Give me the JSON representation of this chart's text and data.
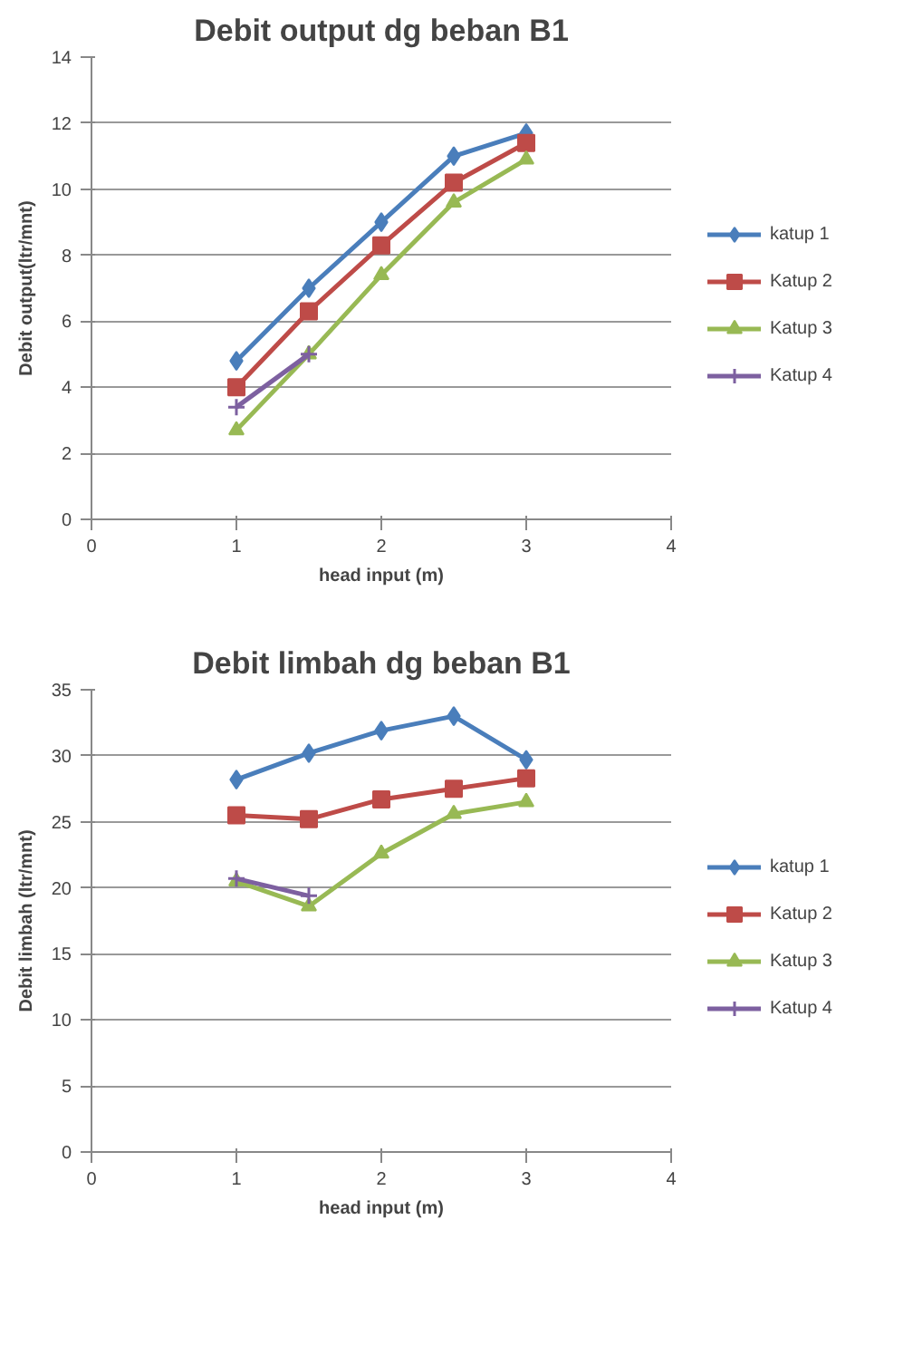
{
  "chart_data": [
    {
      "type": "line",
      "title": "Debit output dg beban B1",
      "xlabel": "head input (m)",
      "ylabel": "Debit output(ltr/mnt)",
      "x": [
        1,
        1.5,
        2,
        2.5,
        3
      ],
      "xlim": [
        0,
        4
      ],
      "xticks": [
        0,
        1,
        2,
        3,
        4
      ],
      "ylim": [
        0,
        14
      ],
      "yticks": [
        0,
        2,
        4,
        6,
        8,
        10,
        12,
        14
      ],
      "grid": "y",
      "legend": "right",
      "series": [
        {
          "name": "katup 1",
          "color": "#4a7ebb",
          "marker": "diamond",
          "values": [
            4.8,
            7.0,
            9.0,
            11.0,
            11.7
          ]
        },
        {
          "name": "Katup 2",
          "color": "#be4b48",
          "marker": "square",
          "values": [
            4.0,
            6.3,
            8.3,
            10.2,
            11.4
          ]
        },
        {
          "name": "Katup 3",
          "color": "#98b954",
          "marker": "triangle",
          "values": [
            2.7,
            5.0,
            7.4,
            9.6,
            10.9
          ]
        },
        {
          "name": "Katup 4",
          "color": "#7d60a0",
          "marker": "cross",
          "values": [
            3.4,
            5.0,
            null,
            null,
            null
          ]
        }
      ]
    },
    {
      "type": "line",
      "title": "Debit limbah dg beban B1",
      "xlabel": "head input (m)",
      "ylabel": "Debit limbah (ltr/mnt)",
      "x": [
        1,
        1.5,
        2,
        2.5,
        3
      ],
      "xlim": [
        0,
        4
      ],
      "xticks": [
        0,
        1,
        2,
        3,
        4
      ],
      "ylim": [
        0,
        35
      ],
      "yticks": [
        0,
        5,
        10,
        15,
        20,
        25,
        30,
        35
      ],
      "grid": "y",
      "legend": "right",
      "series": [
        {
          "name": "katup 1",
          "color": "#4a7ebb",
          "marker": "diamond",
          "values": [
            28.2,
            30.2,
            31.9,
            33.0,
            29.7
          ]
        },
        {
          "name": "Katup 2",
          "color": "#be4b48",
          "marker": "square",
          "values": [
            25.5,
            25.2,
            26.7,
            27.5,
            28.3
          ]
        },
        {
          "name": "Katup 3",
          "color": "#98b954",
          "marker": "triangle",
          "values": [
            20.5,
            18.6,
            22.6,
            25.6,
            26.5
          ]
        },
        {
          "name": "Katup 4",
          "color": "#7d60a0",
          "marker": "cross",
          "values": [
            20.7,
            19.4,
            null,
            null,
            null
          ]
        }
      ]
    }
  ]
}
